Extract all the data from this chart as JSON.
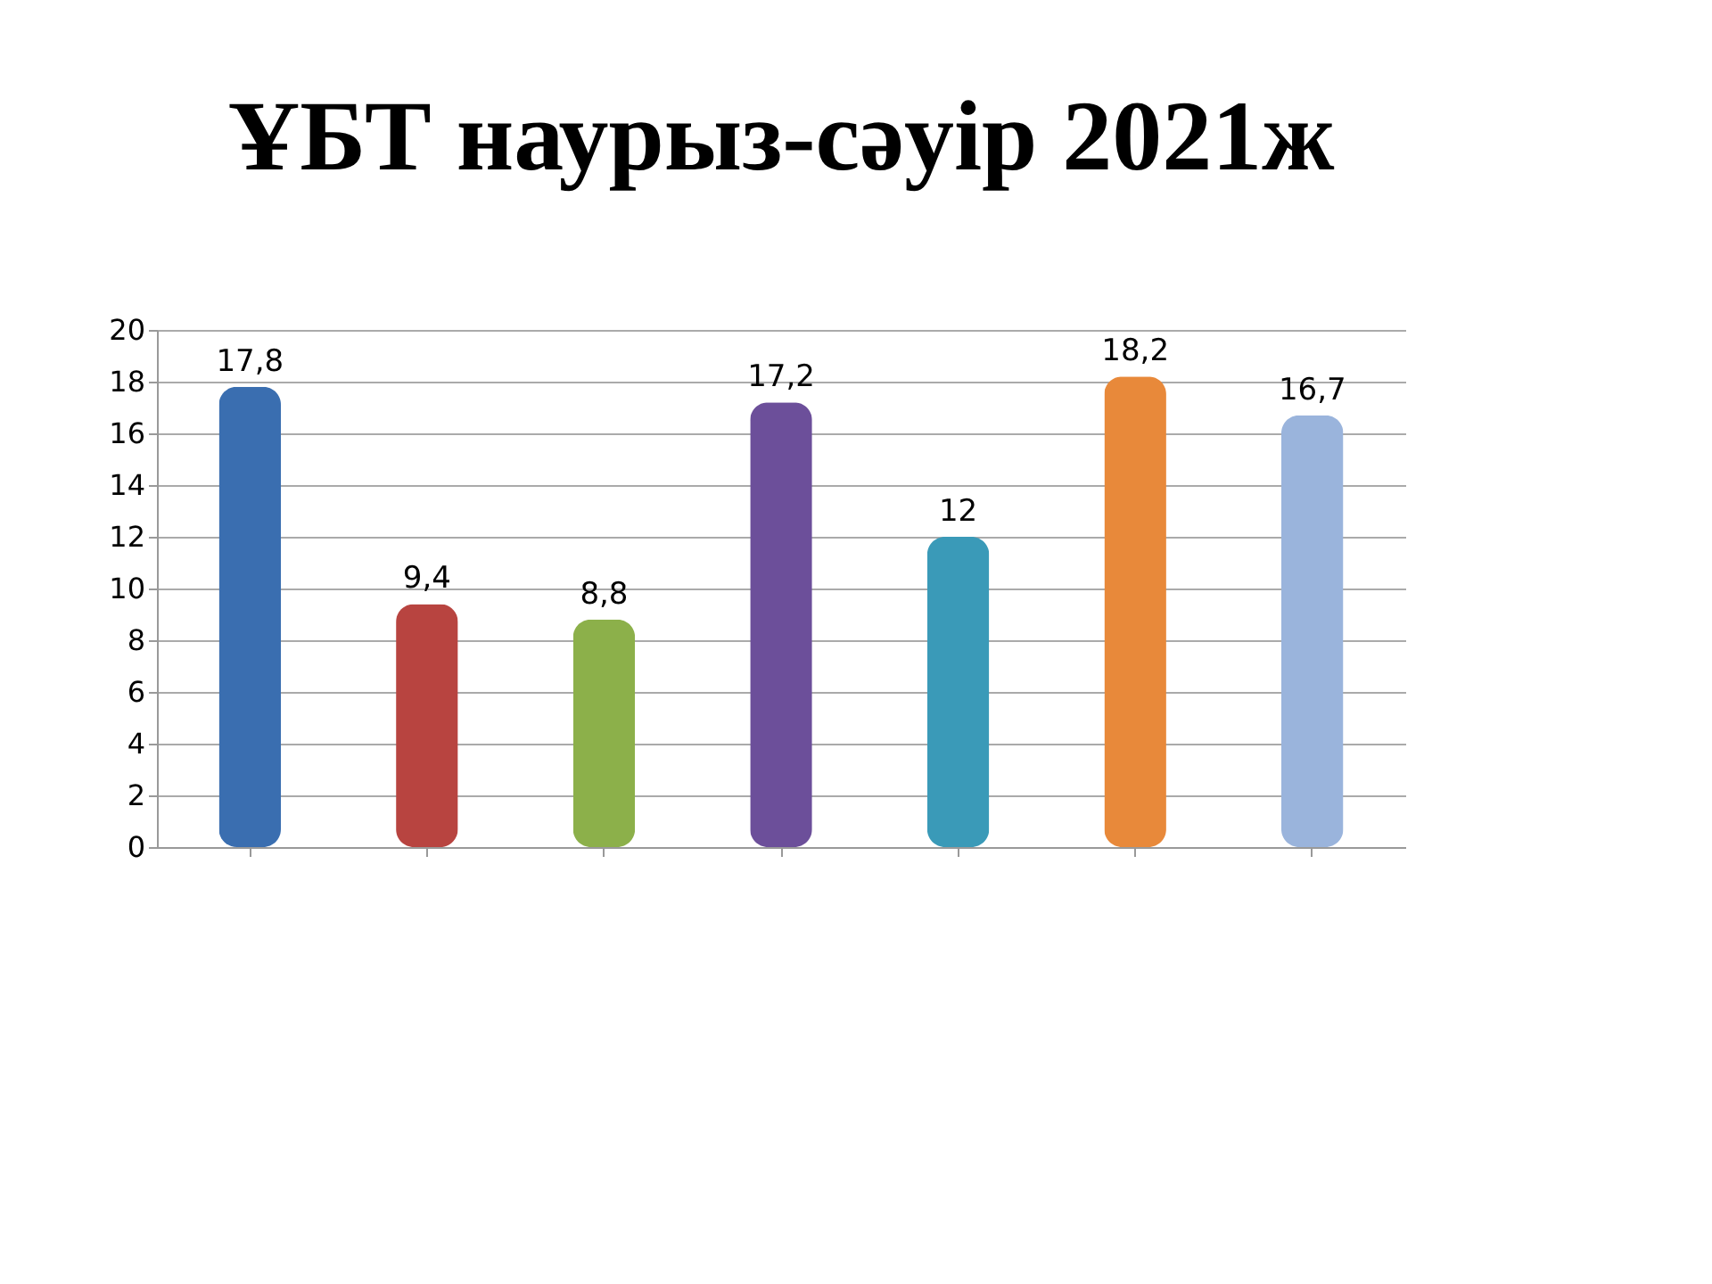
{
  "chart_data": {
    "type": "bar",
    "title": "ҰБТ наурыз-сәуір 2021ж",
    "categories": [
      null,
      null,
      null,
      null,
      null,
      null,
      null
    ],
    "values": [
      17.8,
      9.4,
      8.8,
      17.2,
      12,
      18.2,
      16.7
    ],
    "value_labels": [
      "17,8",
      "9,4",
      "8,8",
      "17,2",
      "12",
      "18,2",
      "16,7"
    ],
    "colors": [
      "#3a6eb0",
      "#b84440",
      "#8cb04a",
      "#6c4f9a",
      "#3a9ab8",
      "#e8893a",
      "#9ab4dc"
    ],
    "ylim": [
      0,
      20
    ],
    "yticks": [
      0,
      2,
      4,
      6,
      8,
      10,
      12,
      14,
      16,
      18,
      20
    ],
    "grid": "y",
    "tick_labels": "y"
  }
}
